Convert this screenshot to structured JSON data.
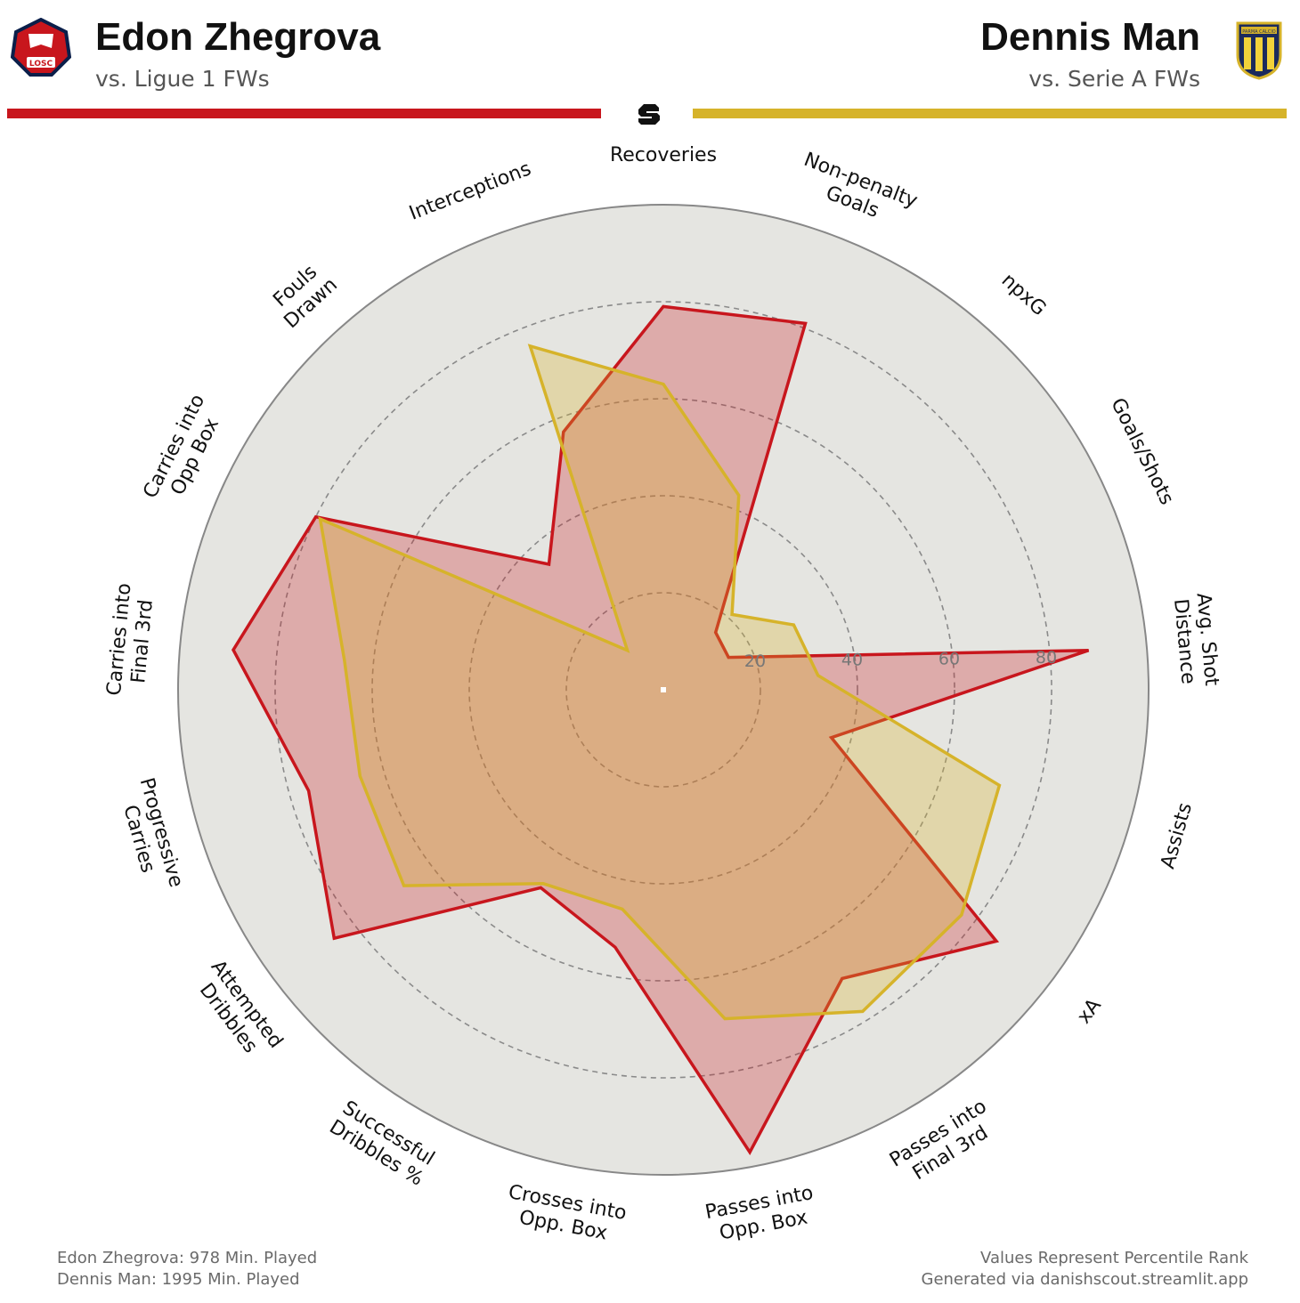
{
  "header": {
    "left": {
      "name": "Edon Zhegrova",
      "comparison": "vs. Ligue 1 FWs",
      "color": "#c8161d",
      "badge": "LOSC"
    },
    "right": {
      "name": "Dennis Man",
      "comparison": "vs. Serie A FWs",
      "color": "#d6b32a",
      "badge": "PARMA CALCIO"
    },
    "logo": "danishscout-logo-icon"
  },
  "chart_data": {
    "type": "radar",
    "title": "",
    "scale": [
      0,
      100
    ],
    "rings": [
      20,
      40,
      60,
      80,
      100
    ],
    "ring_tick_labels": [
      "20",
      "40",
      "60",
      "80"
    ],
    "grid": "dashed-circles",
    "categories": [
      "Recoveries",
      "Non-penalty\nGoals",
      "npxG",
      "Goals/Shots",
      "Avg. Shot\nDistance",
      "Assists",
      "xA",
      "Passes into\nFinal 3rd",
      "Passes into\nOpp. Box",
      "Crosses into\nOpp. Box",
      "Successful\nDribbles %",
      "Attempted\nDribbles",
      "Progressive\nCarries",
      "Carries into\nFinal 3rd",
      "Carries into\nOpp Box",
      "Fouls\nDrawn",
      "Interceptions"
    ],
    "series": [
      {
        "name": "Edon Zhegrova",
        "color": "#c8161d",
        "values": [
          79,
          81,
          16,
          15,
          88,
          36,
          86,
          70,
          97,
          54,
          48,
          85,
          76,
          89,
          80,
          35,
          57
        ]
      },
      {
        "name": "Dennis Man",
        "color": "#d6b32a",
        "values": [
          63,
          43,
          21,
          30,
          32,
          72,
          77,
          78,
          69,
          46,
          47,
          67,
          65,
          66,
          79,
          11,
          76
        ]
      }
    ]
  },
  "footer": {
    "left_line1": "Edon Zhegrova: 978 Min. Played",
    "left_line2": "Dennis Man: 1995 Min. Played",
    "right_line1": "Values Represent Percentile Rank",
    "right_line2": "Generated via danishscout.streamlit.app"
  }
}
